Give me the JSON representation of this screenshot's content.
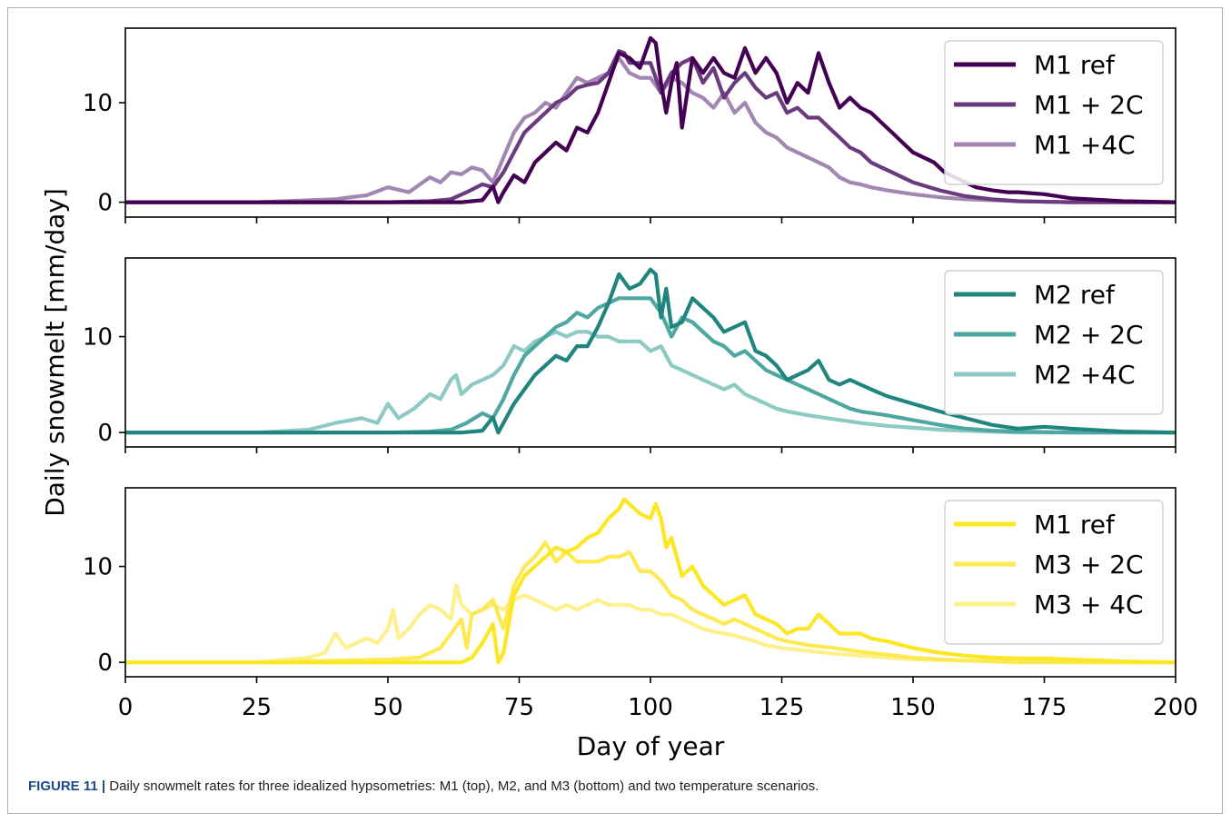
{
  "caption": {
    "label": "FIGURE 11 |",
    "text": " Daily snowmelt rates for three idealized hypsometries: M1 (top), M2, and M3 (bottom) and two temperature scenarios."
  },
  "chart_data": [
    {
      "type": "line",
      "panel": "top",
      "xlim": [
        0,
        200
      ],
      "ylim": [
        -1.5,
        17.5
      ],
      "yticks": [
        0,
        10
      ],
      "xlabel": "",
      "ylabel": "",
      "legend": "top-right",
      "series": [
        {
          "name": "M1 ref",
          "color": "#440154",
          "x": [
            0,
            25,
            50,
            60,
            64,
            68,
            70,
            71,
            72,
            74,
            76,
            78,
            80,
            82,
            84,
            86,
            88,
            90,
            92,
            94,
            96,
            98,
            100,
            101,
            102,
            103,
            104,
            105,
            106,
            108,
            110,
            112,
            114,
            116,
            118,
            120,
            122,
            124,
            126,
            128,
            130,
            132,
            134,
            136,
            138,
            140,
            142,
            144,
            146,
            148,
            150,
            152,
            154,
            156,
            158,
            160,
            162,
            165,
            168,
            170,
            175,
            180,
            190,
            200
          ],
          "y": [
            0,
            0,
            0,
            0,
            0,
            0.2,
            1.6,
            0,
            1.0,
            2.7,
            2.0,
            4.0,
            5.0,
            6.0,
            5.2,
            7.5,
            7.0,
            9.0,
            12.0,
            15.0,
            14.5,
            13.5,
            16.5,
            16.0,
            12.0,
            9.0,
            12.0,
            14.0,
            7.5,
            14.5,
            13.0,
            14.5,
            13.0,
            12.5,
            15.5,
            13.0,
            14.5,
            13.0,
            10.0,
            12.0,
            11.0,
            15.0,
            12.0,
            9.5,
            10.5,
            9.5,
            9.0,
            8.0,
            7.0,
            6.0,
            5.0,
            4.5,
            4.0,
            3.0,
            2.5,
            2.0,
            1.5,
            1.2,
            1.0,
            1.0,
            0.8,
            0.4,
            0.1,
            0
          ]
        },
        {
          "name": "M1 + 2C",
          "color": "#6b3b80",
          "x": [
            0,
            25,
            50,
            58,
            62,
            65,
            68,
            70,
            72,
            74,
            76,
            78,
            80,
            82,
            84,
            86,
            88,
            90,
            92,
            94,
            95,
            96,
            98,
            100,
            102,
            104,
            106,
            108,
            110,
            112,
            114,
            116,
            118,
            120,
            122,
            124,
            126,
            128,
            130,
            132,
            134,
            136,
            138,
            140,
            142,
            144,
            146,
            150,
            155,
            160,
            165,
            170,
            180,
            190,
            200
          ],
          "y": [
            0,
            0,
            0,
            0.1,
            0.3,
            1.0,
            1.8,
            1.5,
            3.0,
            5.0,
            7.0,
            8.0,
            9.0,
            10.0,
            10.5,
            11.5,
            11.8,
            12.0,
            13.0,
            15.2,
            15.0,
            14.0,
            14.0,
            14.0,
            11.0,
            13.0,
            14.0,
            14.5,
            12.0,
            13.5,
            10.5,
            12.0,
            13.0,
            11.5,
            10.5,
            11.0,
            9.0,
            9.5,
            8.5,
            8.5,
            7.5,
            6.5,
            5.5,
            5.0,
            4.0,
            3.5,
            3.0,
            2.0,
            1.2,
            0.6,
            0.3,
            0.1,
            0,
            0,
            0
          ]
        },
        {
          "name": "M1 +4C",
          "color": "#a387b3",
          "x": [
            0,
            25,
            40,
            46,
            50,
            54,
            58,
            60,
            62,
            64,
            66,
            68,
            70,
            72,
            74,
            76,
            78,
            80,
            82,
            84,
            86,
            88,
            90,
            92,
            94,
            96,
            98,
            100,
            102,
            104,
            106,
            108,
            110,
            112,
            114,
            116,
            118,
            120,
            122,
            124,
            126,
            128,
            130,
            132,
            134,
            136,
            138,
            140,
            142,
            145,
            150,
            155,
            160,
            165,
            170,
            180,
            200
          ],
          "y": [
            0,
            0,
            0.3,
            0.7,
            1.5,
            1.0,
            2.5,
            2.0,
            3.0,
            2.8,
            3.5,
            3.2,
            2.0,
            4.5,
            7.0,
            8.5,
            9.0,
            10.0,
            9.5,
            11.0,
            12.5,
            12.0,
            12.5,
            13.0,
            14.5,
            13.0,
            12.5,
            12.5,
            11.0,
            12.5,
            12.0,
            11.0,
            10.5,
            9.5,
            11.0,
            9.0,
            10.0,
            8.0,
            7.0,
            6.5,
            5.5,
            5.0,
            4.5,
            4.0,
            3.5,
            2.5,
            2.0,
            1.8,
            1.5,
            1.2,
            0.8,
            0.5,
            0.3,
            0.2,
            0.1,
            0,
            0
          ]
        }
      ]
    },
    {
      "type": "line",
      "panel": "middle",
      "xlim": [
        0,
        200
      ],
      "ylim": [
        -1.5,
        18.2
      ],
      "yticks": [
        0,
        10
      ],
      "xlabel": "",
      "ylabel": "Daily snowmelt [mm/day]",
      "legend": "top-right",
      "series": [
        {
          "name": "M2 ref",
          "color": "#21857f",
          "x": [
            0,
            25,
            50,
            60,
            64,
            68,
            70,
            71,
            72,
            74,
            76,
            78,
            80,
            82,
            84,
            86,
            88,
            90,
            92,
            94,
            96,
            98,
            100,
            101,
            102,
            103,
            104,
            106,
            108,
            110,
            112,
            114,
            116,
            118,
            120,
            122,
            124,
            126,
            128,
            130,
            132,
            134,
            136,
            138,
            140,
            142,
            145,
            150,
            155,
            160,
            165,
            170,
            175,
            180,
            190,
            200
          ],
          "y": [
            0,
            0,
            0,
            0,
            0,
            0.2,
            1.6,
            0,
            1.0,
            3.0,
            4.5,
            6.0,
            7.0,
            8.0,
            7.5,
            9.0,
            9.0,
            11.0,
            13.5,
            16.5,
            15.0,
            15.5,
            17.0,
            16.5,
            12.0,
            15.0,
            11.0,
            11.5,
            14.0,
            13.0,
            12.0,
            10.5,
            11.0,
            11.5,
            8.5,
            8.0,
            7.0,
            5.5,
            6.0,
            6.5,
            7.5,
            5.5,
            5.0,
            5.5,
            5.0,
            4.5,
            3.8,
            3.0,
            2.2,
            1.5,
            0.8,
            0.4,
            0.6,
            0.4,
            0.1,
            0
          ]
        },
        {
          "name": "M2 + 2C",
          "color": "#4fa7a1",
          "x": [
            0,
            25,
            50,
            58,
            62,
            65,
            68,
            70,
            72,
            74,
            76,
            78,
            80,
            82,
            84,
            86,
            88,
            90,
            92,
            94,
            96,
            98,
            100,
            102,
            104,
            106,
            108,
            110,
            112,
            114,
            116,
            118,
            120,
            122,
            124,
            126,
            128,
            130,
            132,
            134,
            136,
            138,
            140,
            145,
            150,
            155,
            160,
            165,
            170,
            180,
            190,
            200
          ],
          "y": [
            0,
            0,
            0,
            0.1,
            0.3,
            1.0,
            2.0,
            1.5,
            3.5,
            6.0,
            8.0,
            9.0,
            10.0,
            11.0,
            11.5,
            12.5,
            12.0,
            13.0,
            13.5,
            14.0,
            14.0,
            14.0,
            14.0,
            12.5,
            10.0,
            12.0,
            11.5,
            10.5,
            9.5,
            9.0,
            8.0,
            8.5,
            7.5,
            6.5,
            6.0,
            5.5,
            5.0,
            4.5,
            4.0,
            3.5,
            3.0,
            2.5,
            2.2,
            1.8,
            1.3,
            0.8,
            0.4,
            0.2,
            0.1,
            0,
            0,
            0
          ]
        },
        {
          "name": "M2 +4C",
          "color": "#8ecac4",
          "x": [
            0,
            25,
            35,
            40,
            45,
            48,
            50,
            52,
            55,
            58,
            60,
            62,
            63,
            64,
            66,
            68,
            70,
            72,
            74,
            76,
            78,
            80,
            82,
            84,
            86,
            88,
            90,
            92,
            94,
            96,
            98,
            100,
            102,
            104,
            106,
            108,
            110,
            112,
            114,
            116,
            118,
            120,
            122,
            124,
            126,
            128,
            130,
            135,
            140,
            145,
            150,
            155,
            160,
            165,
            170,
            180,
            200
          ],
          "y": [
            0,
            0,
            0.3,
            1.0,
            1.5,
            1.0,
            3.0,
            1.5,
            2.5,
            4.0,
            3.5,
            5.5,
            6.0,
            4.0,
            5.0,
            5.5,
            6.0,
            7.0,
            9.0,
            8.5,
            9.5,
            10.0,
            10.5,
            10.0,
            10.5,
            10.5,
            10.0,
            10.0,
            9.5,
            9.5,
            9.5,
            8.5,
            9.0,
            7.0,
            6.5,
            6.0,
            5.5,
            5.0,
            4.5,
            5.0,
            4.0,
            3.5,
            3.0,
            2.5,
            2.2,
            2.0,
            1.8,
            1.4,
            1.0,
            0.7,
            0.5,
            0.3,
            0.2,
            0.1,
            0,
            0,
            0
          ]
        }
      ]
    },
    {
      "type": "line",
      "panel": "bottom",
      "xlim": [
        0,
        200
      ],
      "ylim": [
        -1.5,
        18.2
      ],
      "yticks": [
        0,
        10
      ],
      "xticks": [
        0,
        25,
        50,
        75,
        100,
        125,
        150,
        175,
        200
      ],
      "xlabel": "Day of year",
      "ylabel": "",
      "legend": "top-right",
      "series": [
        {
          "name": "M1 ref",
          "color": "#fde725",
          "x": [
            0,
            25,
            50,
            60,
            64,
            66,
            68,
            70,
            71,
            72,
            74,
            76,
            78,
            80,
            82,
            84,
            86,
            88,
            90,
            92,
            94,
            95,
            96,
            98,
            100,
            101,
            102,
            103,
            104,
            106,
            108,
            110,
            112,
            114,
            116,
            118,
            120,
            122,
            124,
            126,
            128,
            130,
            132,
            134,
            136,
            138,
            140,
            142,
            145,
            150,
            155,
            160,
            165,
            170,
            175,
            180,
            190,
            200
          ],
          "y": [
            0,
            0,
            0,
            0,
            0,
            0.5,
            2.0,
            4.0,
            0,
            1.0,
            7.0,
            9.0,
            10.0,
            11.0,
            12.0,
            11.5,
            12.0,
            13.0,
            13.5,
            15.0,
            16.0,
            17.0,
            16.5,
            15.5,
            15.0,
            16.5,
            15.0,
            12.0,
            13.0,
            9.0,
            10.0,
            8.0,
            7.0,
            6.0,
            6.5,
            7.0,
            5.0,
            4.5,
            4.0,
            3.0,
            3.5,
            3.5,
            5.0,
            4.0,
            3.0,
            3.0,
            3.0,
            2.5,
            2.2,
            1.5,
            1.0,
            0.7,
            0.5,
            0.4,
            0.4,
            0.3,
            0.1,
            0
          ]
        },
        {
          "name": "M3 + 2C",
          "color": "#fdea52",
          "x": [
            0,
            25,
            50,
            56,
            60,
            62,
            64,
            65,
            66,
            68,
            70,
            72,
            74,
            76,
            78,
            80,
            82,
            84,
            86,
            88,
            90,
            92,
            94,
            96,
            98,
            100,
            102,
            104,
            106,
            108,
            110,
            112,
            114,
            116,
            118,
            120,
            122,
            124,
            126,
            128,
            130,
            135,
            140,
            145,
            150,
            155,
            160,
            165,
            170,
            180,
            190,
            200
          ],
          "y": [
            0,
            0,
            0.3,
            0.5,
            1.5,
            3.0,
            4.5,
            1.5,
            5.0,
            5.5,
            6.5,
            3.5,
            8.0,
            10.0,
            11.0,
            12.5,
            10.5,
            11.5,
            10.5,
            10.5,
            10.5,
            11.0,
            11.0,
            11.5,
            9.5,
            9.5,
            8.5,
            7.0,
            6.5,
            5.5,
            5.0,
            4.5,
            4.0,
            4.5,
            4.0,
            3.5,
            3.0,
            2.5,
            2.2,
            2.0,
            1.8,
            1.5,
            1.1,
            0.8,
            0.5,
            0.3,
            0.2,
            0.1,
            0,
            0,
            0,
            0
          ]
        },
        {
          "name": "M3 + 4C",
          "color": "#fdf08d",
          "x": [
            0,
            25,
            35,
            38,
            40,
            42,
            44,
            46,
            48,
            50,
            51,
            52,
            54,
            56,
            58,
            60,
            62,
            63,
            64,
            66,
            68,
            70,
            72,
            74,
            76,
            78,
            80,
            82,
            84,
            86,
            88,
            90,
            92,
            94,
            96,
            98,
            100,
            102,
            104,
            106,
            108,
            110,
            112,
            114,
            116,
            118,
            120,
            122,
            125,
            130,
            135,
            140,
            145,
            150,
            160,
            170,
            180,
            200
          ],
          "y": [
            0,
            0,
            0.5,
            1.0,
            3.0,
            1.5,
            2.0,
            2.5,
            2.0,
            3.5,
            5.5,
            2.5,
            3.5,
            5.0,
            6.0,
            5.5,
            4.5,
            8.0,
            6.0,
            5.0,
            5.5,
            6.0,
            5.5,
            6.5,
            7.0,
            6.5,
            6.0,
            5.5,
            6.0,
            5.5,
            6.0,
            6.5,
            6.0,
            6.0,
            6.0,
            5.5,
            5.5,
            5.0,
            5.0,
            4.5,
            4.0,
            3.5,
            3.2,
            3.0,
            2.8,
            2.5,
            2.2,
            1.8,
            1.5,
            1.2,
            0.9,
            0.7,
            0.5,
            0.3,
            0.2,
            0.1,
            0,
            0
          ]
        }
      ]
    }
  ]
}
